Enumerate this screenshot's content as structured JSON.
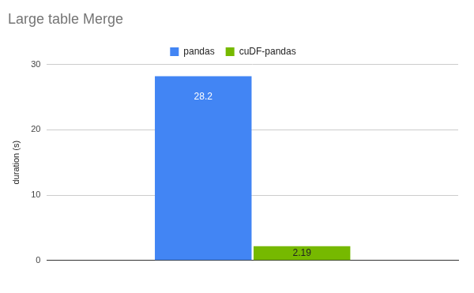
{
  "chart_data": {
    "type": "bar",
    "title": "Large table Merge",
    "categories": [
      null
    ],
    "series": [
      {
        "name": "pandas",
        "color": "#4285f4",
        "values": [
          28.2
        ]
      },
      {
        "name": "cuDF-pandas",
        "color": "#76b900",
        "values": [
          2.19
        ]
      }
    ],
    "y_label": "duration (s)",
    "ylim": [
      0,
      30
    ],
    "yticks": [
      0,
      10,
      20,
      30
    ],
    "grid": true,
    "legend": "top",
    "data_labels": true
  }
}
